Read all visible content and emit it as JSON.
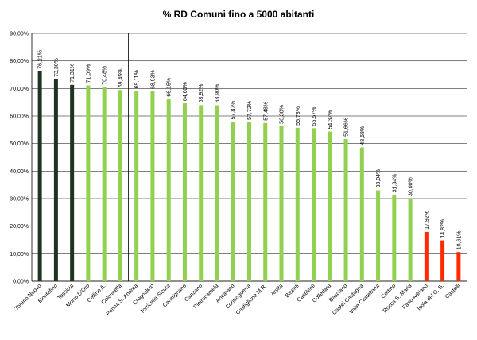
{
  "chart_data": {
    "type": "bar",
    "title": "% RD Comuni fino a 5000 abitanti",
    "xlabel": "",
    "ylabel": "",
    "ylim": [
      0,
      90
    ],
    "yticks": [
      "0,00%",
      "10,00%",
      "20,00%",
      "30,00%",
      "40,00%",
      "50,00%",
      "60,00%",
      "70,00%",
      "80,00%",
      "90,00%"
    ],
    "grid": true,
    "legend": "none",
    "separator_after_index": 5,
    "colors": {
      "dark": "#1f3321",
      "green": "#92d050",
      "red": "#ff2a00",
      "grid": "#000000"
    },
    "categories": [
      "Torano Nuovo",
      "Montefino",
      "Tossicia",
      "Morro D'Oro",
      "Cellino A.",
      "Colonnella",
      "Penna S. Andrea",
      "Crognaleto",
      "Torricella Sicura",
      "Cermignano",
      "Canzano",
      "Pietracamela",
      "Ancarano",
      "Controguerra",
      "Castiglione M.R.",
      "Arsita",
      "Bisenti",
      "Castilenti",
      "Colledara",
      "Basciano",
      "Castel Castagna",
      "Valle Castellana",
      "Cortino",
      "Rocca S. Maria",
      "Fano Adriano",
      "Isola del G. S.",
      "Castelli"
    ],
    "values": [
      76.21,
      73.3,
      71.31,
      71.09,
      70.48,
      69.45,
      69.11,
      68.93,
      66.15,
      64.6,
      63.92,
      63.9,
      57.87,
      57.72,
      57.48,
      56.3,
      55.73,
      55.57,
      54.37,
      51.66,
      48.58,
      33.04,
      31.34,
      30.0,
      17.92,
      14.82,
      10.61
    ],
    "labels": [
      "76,21%",
      "73,30%",
      "71,31%",
      "71,09%",
      "70,48%",
      "69,45%",
      "69,11%",
      "68,93%",
      "66,15%",
      "64,60%",
      "63,92%",
      "63,90%",
      "57,87%",
      "57,72%",
      "57,48%",
      "56,30%",
      "55,73%",
      "55,57%",
      "54,37%",
      "51,66%",
      "48,58%",
      "33,04%",
      "31,34%",
      "30,00%",
      "17,92%",
      "14,82%",
      "10,61%"
    ],
    "bar_colors": [
      "dark",
      "dark",
      "dark",
      "green",
      "green",
      "green",
      "green",
      "green",
      "green",
      "green",
      "green",
      "green",
      "green",
      "green",
      "green",
      "green",
      "green",
      "green",
      "green",
      "green",
      "green",
      "green",
      "green",
      "green",
      "red",
      "red",
      "red"
    ]
  }
}
